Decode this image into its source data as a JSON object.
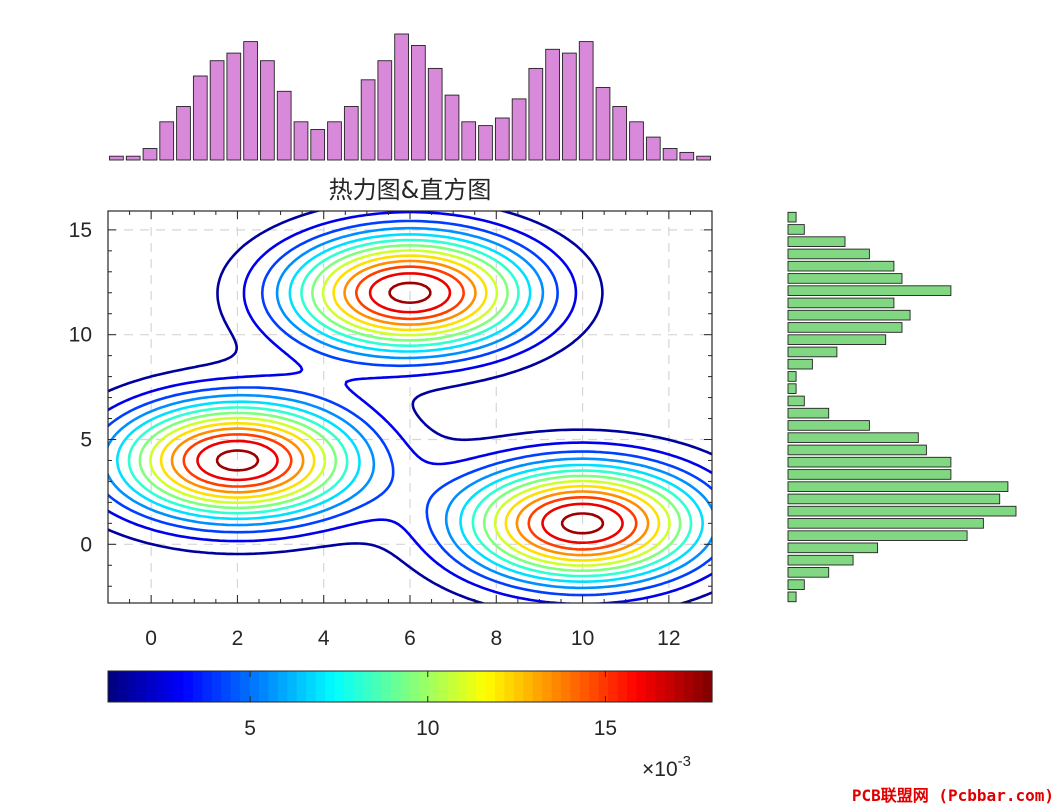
{
  "chart_data": [
    {
      "type": "heatmap",
      "subtype": "contour",
      "title": "热力图&直方图",
      "xlabel": "",
      "ylabel": "",
      "xlim": [
        -1,
        13
      ],
      "ylim": [
        -2.8,
        15.9
      ],
      "xticks": [
        "0",
        "2",
        "4",
        "6",
        "8",
        "10",
        "12"
      ],
      "yticks": [
        "0",
        "5",
        "10",
        "15"
      ],
      "grid": true,
      "grid_style": "dashed",
      "colormap": "jet",
      "contour_levels": 13,
      "centers": [
        {
          "x": 2,
          "y": 4,
          "peak": 0.018
        },
        {
          "x": 6,
          "y": 12,
          "peak": 0.018
        },
        {
          "x": 10,
          "y": 1,
          "peak": 0.018
        }
      ],
      "sigma": 2
    },
    {
      "type": "bar",
      "orientation": "vertical",
      "position": "top",
      "color": "#d889d9",
      "values": [
        1,
        1,
        3,
        10,
        14,
        22,
        26,
        28,
        31,
        26,
        18,
        10,
        8,
        10,
        14,
        21,
        26,
        33,
        30,
        24,
        17,
        10,
        9,
        11,
        16,
        24,
        29,
        28,
        31,
        19,
        14,
        10,
        6,
        3,
        2,
        1
      ]
    },
    {
      "type": "bar",
      "orientation": "horizontal",
      "position": "right",
      "color": "#82d782",
      "values_top_to_bottom": [
        1,
        2,
        7,
        10,
        13,
        14,
        20,
        13,
        15,
        14,
        12,
        6,
        3,
        1,
        1,
        2,
        5,
        10,
        16,
        17,
        20,
        20,
        27,
        26,
        28,
        24,
        22,
        11,
        8,
        5,
        2,
        1
      ]
    },
    {
      "type": "colorbar",
      "colormap": "jet",
      "range": [
        0.001,
        0.018
      ],
      "ticks": [
        "5",
        "10",
        "15"
      ],
      "multiplier": "×10",
      "multiplier_exponent": "-3"
    }
  ],
  "watermark": "PCB联盟网 (Pcbbar.com)"
}
